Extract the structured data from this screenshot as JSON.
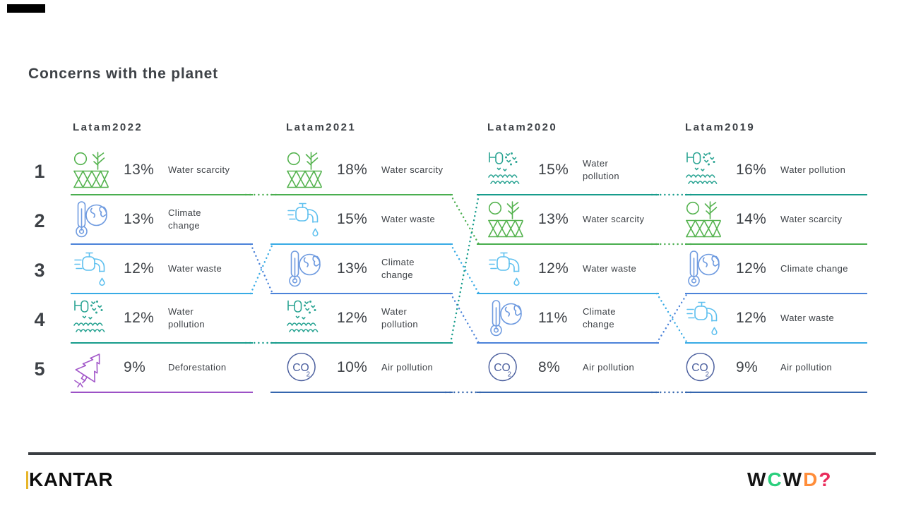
{
  "page": {
    "title": "Concerns with the planet"
  },
  "text_color": "#3e4247",
  "ranks": [
    "1",
    "2",
    "3",
    "4",
    "5"
  ],
  "categories": {
    "water-scarcity": {
      "name": "Water scarcity",
      "icon": "water-scarcity-icon",
      "line_color": "#4aae4f",
      "icon_color": "#55b34f"
    },
    "climate-change": {
      "name": "Climate change",
      "icon": "climate-change-icon",
      "line_color": "#4c83d9",
      "icon_color": "#6f9be0"
    },
    "water-waste": {
      "name": "Water waste",
      "icon": "water-waste-icon",
      "line_color": "#38abe5",
      "icon_color": "#5ec0ef"
    },
    "water-pollution": {
      "name": "Water pollution",
      "icon": "water-pollution-icon",
      "line_color": "#179c8c",
      "icon_color": "#2aa493"
    },
    "deforestation": {
      "name": "Deforestation",
      "icon": "deforestation-icon",
      "line_color": "#9c51c6",
      "icon_color": "#a257c9"
    },
    "air-pollution": {
      "name": "Air pollution",
      "icon": "air-pollution-icon",
      "line_color": "#3566ae",
      "icon_color": "#4b5f9e"
    }
  },
  "columns": [
    {
      "header": "Latam2022",
      "rows": [
        {
          "rank": 1,
          "category": "water-scarcity",
          "pct": "13%",
          "label_lines": [
            "Water scarcity"
          ]
        },
        {
          "rank": 2,
          "category": "climate-change",
          "pct": "13%",
          "label_lines": [
            "Climate",
            "change"
          ]
        },
        {
          "rank": 3,
          "category": "water-waste",
          "pct": "12%",
          "label_lines": [
            "Water waste"
          ]
        },
        {
          "rank": 4,
          "category": "water-pollution",
          "pct": "12%",
          "label_lines": [
            "Water",
            "pollution"
          ]
        },
        {
          "rank": 5,
          "category": "deforestation",
          "pct": "9%",
          "label_lines": [
            "Deforestation"
          ]
        }
      ]
    },
    {
      "header": "Latam2021",
      "rows": [
        {
          "rank": 1,
          "category": "water-scarcity",
          "pct": "18%",
          "label_lines": [
            "Water scarcity"
          ]
        },
        {
          "rank": 2,
          "category": "water-waste",
          "pct": "15%",
          "label_lines": [
            "Water waste"
          ]
        },
        {
          "rank": 3,
          "category": "climate-change",
          "pct": "13%",
          "label_lines": [
            "Climate",
            "change"
          ]
        },
        {
          "rank": 4,
          "category": "water-pollution",
          "pct": "12%",
          "label_lines": [
            "Water",
            "pollution"
          ]
        },
        {
          "rank": 5,
          "category": "air-pollution",
          "pct": "10%",
          "label_lines": [
            "Air pollution"
          ]
        }
      ]
    },
    {
      "header": "Latam2020",
      "rows": [
        {
          "rank": 1,
          "category": "water-pollution",
          "pct": "15%",
          "label_lines": [
            "Water",
            "pollution"
          ]
        },
        {
          "rank": 2,
          "category": "water-scarcity",
          "pct": "13%",
          "label_lines": [
            "Water scarcity"
          ]
        },
        {
          "rank": 3,
          "category": "water-waste",
          "pct": "12%",
          "label_lines": [
            "Water waste"
          ]
        },
        {
          "rank": 4,
          "category": "climate-change",
          "pct": "11%",
          "label_lines": [
            "Climate",
            "change"
          ]
        },
        {
          "rank": 5,
          "category": "air-pollution",
          "pct": "8%",
          "label_lines": [
            "Air pollution"
          ]
        }
      ]
    },
    {
      "header": "Latam2019",
      "rows": [
        {
          "rank": 1,
          "category": "water-pollution",
          "pct": "16%",
          "label_lines": [
            "Water pollution"
          ]
        },
        {
          "rank": 2,
          "category": "water-scarcity",
          "pct": "14%",
          "label_lines": [
            "Water scarcity"
          ]
        },
        {
          "rank": 3,
          "category": "climate-change",
          "pct": "12%",
          "label_lines": [
            "Climate change"
          ]
        },
        {
          "rank": 4,
          "category": "water-waste",
          "pct": "12%",
          "label_lines": [
            "Water waste"
          ]
        },
        {
          "rank": 5,
          "category": "air-pollution",
          "pct": "9%",
          "label_lines": [
            "Air pollution"
          ]
        }
      ]
    }
  ],
  "movements": [
    {
      "category": "water-scarcity",
      "from_col": 0,
      "from_rank": 1,
      "to_col": 1,
      "to_rank": 1
    },
    {
      "category": "water-scarcity",
      "from_col": 1,
      "from_rank": 1,
      "to_col": 2,
      "to_rank": 2
    },
    {
      "category": "water-scarcity",
      "from_col": 2,
      "from_rank": 2,
      "to_col": 3,
      "to_rank": 2
    },
    {
      "category": "climate-change",
      "from_col": 0,
      "from_rank": 2,
      "to_col": 1,
      "to_rank": 3
    },
    {
      "category": "climate-change",
      "from_col": 1,
      "from_rank": 3,
      "to_col": 2,
      "to_rank": 4
    },
    {
      "category": "climate-change",
      "from_col": 2,
      "from_rank": 4,
      "to_col": 3,
      "to_rank": 3
    },
    {
      "category": "water-waste",
      "from_col": 0,
      "from_rank": 3,
      "to_col": 1,
      "to_rank": 2
    },
    {
      "category": "water-waste",
      "from_col": 1,
      "from_rank": 2,
      "to_col": 2,
      "to_rank": 3
    },
    {
      "category": "water-waste",
      "from_col": 2,
      "from_rank": 3,
      "to_col": 3,
      "to_rank": 4
    },
    {
      "category": "water-pollution",
      "from_col": 0,
      "from_rank": 4,
      "to_col": 1,
      "to_rank": 4
    },
    {
      "category": "water-pollution",
      "from_col": 1,
      "from_rank": 4,
      "to_col": 2,
      "to_rank": 1
    },
    {
      "category": "water-pollution",
      "from_col": 2,
      "from_rank": 1,
      "to_col": 3,
      "to_rank": 1
    },
    {
      "category": "air-pollution",
      "from_col": 1,
      "from_rank": 5,
      "to_col": 2,
      "to_rank": 5
    },
    {
      "category": "air-pollution",
      "from_col": 2,
      "from_rank": 5,
      "to_col": 3,
      "to_rank": 5
    }
  ],
  "footer": {
    "kantar_text": "KANTAR",
    "kantar_accent_color": "#e7b52a",
    "rule_color": "#3a3e42",
    "wcwd_letters": [
      {
        "ch": "W",
        "color": "#141414"
      },
      {
        "ch": "C",
        "color": "#2bcf7d"
      },
      {
        "ch": "W",
        "color": "#141414"
      },
      {
        "ch": "D",
        "color": "#ff8d3a"
      },
      {
        "ch": "?",
        "color": "#ea2c5c"
      }
    ]
  },
  "chart_data": {
    "type": "table",
    "title": "Concerns with the planet",
    "columns": [
      "Latam2022",
      "Latam2021",
      "Latam2020",
      "Latam2019"
    ],
    "unit": "%",
    "rankings": {
      "Latam2022": [
        [
          "Water scarcity",
          13
        ],
        [
          "Climate change",
          13
        ],
        [
          "Water waste",
          12
        ],
        [
          "Water pollution",
          12
        ],
        [
          "Deforestation",
          9
        ]
      ],
      "Latam2021": [
        [
          "Water scarcity",
          18
        ],
        [
          "Water waste",
          15
        ],
        [
          "Climate change",
          13
        ],
        [
          "Water pollution",
          12
        ],
        [
          "Air pollution",
          10
        ]
      ],
      "Latam2020": [
        [
          "Water pollution",
          15
        ],
        [
          "Water scarcity",
          13
        ],
        [
          "Water waste",
          12
        ],
        [
          "Climate change",
          11
        ],
        [
          "Air pollution",
          8
        ]
      ],
      "Latam2019": [
        [
          "Water pollution",
          16
        ],
        [
          "Water scarcity",
          14
        ],
        [
          "Climate change",
          12
        ],
        [
          "Water waste",
          12
        ],
        [
          "Air pollution",
          9
        ]
      ]
    }
  }
}
